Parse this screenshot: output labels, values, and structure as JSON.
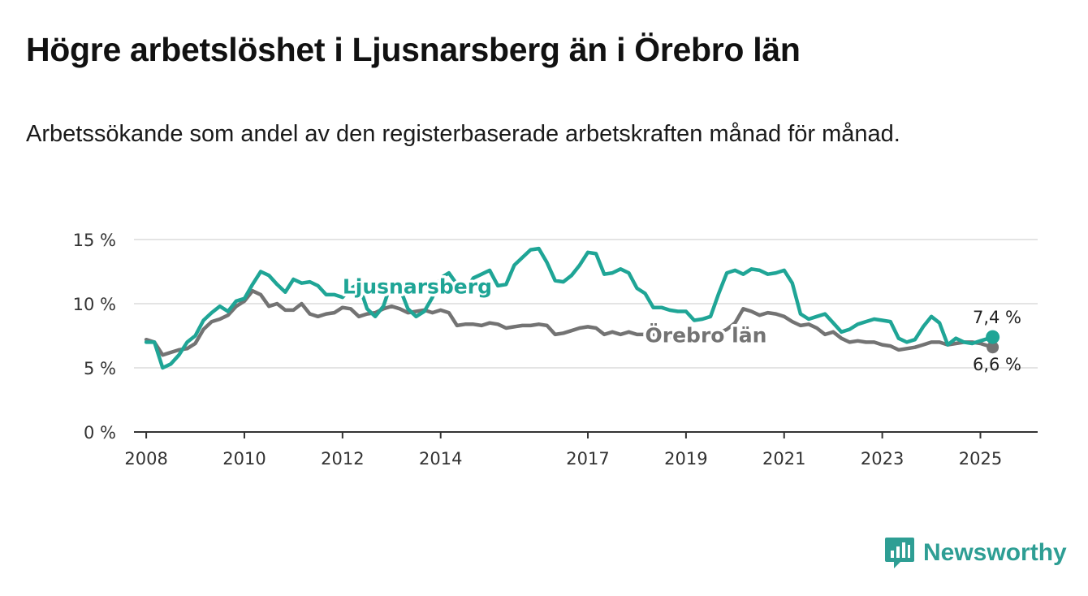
{
  "title": "Högre arbetslöshet i Ljusnarsberg än i Örebro län",
  "subtitle": "Arbetssökande som andel av den registerbaserade arbetskraften månad för månad.",
  "brand": {
    "name": "Newsworthy",
    "icon": "bar-chart-icon",
    "color": "#2e9e94"
  },
  "chart_data": {
    "type": "line",
    "title": "Högre arbetslöshet i Ljusnarsberg än i Örebro län",
    "subtitle": "Arbetssökande som andel av den registerbaserade arbetskraften månad för månad.",
    "xlabel": "",
    "ylabel": "",
    "ylim": [
      0,
      15
    ],
    "xlim": [
      "2007-10",
      "2026-03"
    ],
    "grid": true,
    "y_ticks": [
      {
        "value": 0,
        "label": "0 %"
      },
      {
        "value": 5,
        "label": "5 %"
      },
      {
        "value": 10,
        "label": "10 %"
      },
      {
        "value": 15,
        "label": "15 %"
      }
    ],
    "x_ticks": [
      {
        "value": "2008-01",
        "label": "2008"
      },
      {
        "value": "2010-01",
        "label": "2010"
      },
      {
        "value": "2012-01",
        "label": "2012"
      },
      {
        "value": "2014-01",
        "label": "2014"
      },
      {
        "value": "2017-01",
        "label": "2017"
      },
      {
        "value": "2019-01",
        "label": "2019"
      },
      {
        "value": "2021-01",
        "label": "2021"
      },
      {
        "value": "2023-01",
        "label": "2023"
      },
      {
        "value": "2025-01",
        "label": "2025"
      }
    ],
    "series": [
      {
        "name": "Ljusnarsberg",
        "color": "#1fa596",
        "end_label": "7,4 %",
        "points": [
          [
            "2008-01",
            7.0
          ],
          [
            "2008-03",
            7.0
          ],
          [
            "2008-05",
            5.0
          ],
          [
            "2008-07",
            5.3
          ],
          [
            "2008-09",
            6.0
          ],
          [
            "2008-11",
            7.0
          ],
          [
            "2009-01",
            7.5
          ],
          [
            "2009-03",
            8.7
          ],
          [
            "2009-05",
            9.3
          ],
          [
            "2009-07",
            9.8
          ],
          [
            "2009-09",
            9.4
          ],
          [
            "2009-11",
            10.2
          ],
          [
            "2010-01",
            10.4
          ],
          [
            "2010-03",
            11.5
          ],
          [
            "2010-05",
            12.5
          ],
          [
            "2010-07",
            12.2
          ],
          [
            "2010-09",
            11.5
          ],
          [
            "2010-11",
            10.9
          ],
          [
            "2011-01",
            11.9
          ],
          [
            "2011-03",
            11.6
          ],
          [
            "2011-05",
            11.7
          ],
          [
            "2011-07",
            11.4
          ],
          [
            "2011-09",
            10.7
          ],
          [
            "2011-11",
            10.7
          ],
          [
            "2012-01",
            10.5
          ],
          [
            "2012-03",
            11.2
          ],
          [
            "2012-05",
            11.5
          ],
          [
            "2012-07",
            9.6
          ],
          [
            "2012-09",
            9.0
          ],
          [
            "2012-11",
            9.8
          ],
          [
            "2013-01",
            11.7
          ],
          [
            "2013-03",
            11.2
          ],
          [
            "2013-05",
            9.6
          ],
          [
            "2013-07",
            9.0
          ],
          [
            "2013-09",
            9.4
          ],
          [
            "2013-11",
            10.5
          ],
          [
            "2014-01",
            12.0
          ],
          [
            "2014-03",
            12.4
          ],
          [
            "2014-05",
            11.5
          ],
          [
            "2014-07",
            11.0
          ],
          [
            "2014-09",
            12.0
          ],
          [
            "2014-11",
            12.3
          ],
          [
            "2015-01",
            12.6
          ],
          [
            "2015-03",
            11.4
          ],
          [
            "2015-05",
            11.5
          ],
          [
            "2015-07",
            13.0
          ],
          [
            "2015-09",
            13.6
          ],
          [
            "2015-11",
            14.2
          ],
          [
            "2016-01",
            14.3
          ],
          [
            "2016-03",
            13.2
          ],
          [
            "2016-05",
            11.8
          ],
          [
            "2016-07",
            11.7
          ],
          [
            "2016-09",
            12.2
          ],
          [
            "2016-11",
            13.0
          ],
          [
            "2017-01",
            14.0
          ],
          [
            "2017-03",
            13.9
          ],
          [
            "2017-05",
            12.3
          ],
          [
            "2017-07",
            12.4
          ],
          [
            "2017-09",
            12.7
          ],
          [
            "2017-11",
            12.4
          ],
          [
            "2018-01",
            11.2
          ],
          [
            "2018-03",
            10.8
          ],
          [
            "2018-05",
            9.7
          ],
          [
            "2018-07",
            9.7
          ],
          [
            "2018-09",
            9.5
          ],
          [
            "2018-11",
            9.4
          ],
          [
            "2019-01",
            9.4
          ],
          [
            "2019-03",
            8.7
          ],
          [
            "2019-05",
            8.8
          ],
          [
            "2019-07",
            9.0
          ],
          [
            "2019-09",
            10.8
          ],
          [
            "2019-11",
            12.4
          ],
          [
            "2020-01",
            12.6
          ],
          [
            "2020-03",
            12.3
          ],
          [
            "2020-05",
            12.7
          ],
          [
            "2020-07",
            12.6
          ],
          [
            "2020-09",
            12.3
          ],
          [
            "2020-11",
            12.4
          ],
          [
            "2021-01",
            12.6
          ],
          [
            "2021-03",
            11.6
          ],
          [
            "2021-05",
            9.2
          ],
          [
            "2021-07",
            8.8
          ],
          [
            "2021-09",
            9.0
          ],
          [
            "2021-11",
            9.2
          ],
          [
            "2022-01",
            8.5
          ],
          [
            "2022-03",
            7.8
          ],
          [
            "2022-05",
            8.0
          ],
          [
            "2022-07",
            8.4
          ],
          [
            "2022-09",
            8.6
          ],
          [
            "2022-11",
            8.8
          ],
          [
            "2023-01",
            8.7
          ],
          [
            "2023-03",
            8.6
          ],
          [
            "2023-05",
            7.3
          ],
          [
            "2023-07",
            7.0
          ],
          [
            "2023-09",
            7.2
          ],
          [
            "2023-11",
            8.2
          ],
          [
            "2024-01",
            9.0
          ],
          [
            "2024-03",
            8.5
          ],
          [
            "2024-05",
            6.8
          ],
          [
            "2024-07",
            7.3
          ],
          [
            "2024-09",
            7.0
          ],
          [
            "2024-11",
            6.9
          ],
          [
            "2025-01",
            7.1
          ],
          [
            "2025-04",
            7.4
          ]
        ]
      },
      {
        "name": "Örebro län",
        "color": "#737373",
        "end_label": "6,6 %",
        "points": [
          [
            "2008-01",
            7.2
          ],
          [
            "2008-03",
            7.0
          ],
          [
            "2008-05",
            6.0
          ],
          [
            "2008-07",
            6.2
          ],
          [
            "2008-09",
            6.4
          ],
          [
            "2008-11",
            6.5
          ],
          [
            "2009-01",
            6.9
          ],
          [
            "2009-03",
            8.0
          ],
          [
            "2009-05",
            8.6
          ],
          [
            "2009-07",
            8.8
          ],
          [
            "2009-09",
            9.1
          ],
          [
            "2009-11",
            9.8
          ],
          [
            "2010-01",
            10.2
          ],
          [
            "2010-03",
            11.0
          ],
          [
            "2010-05",
            10.7
          ],
          [
            "2010-07",
            9.8
          ],
          [
            "2010-09",
            10.0
          ],
          [
            "2010-11",
            9.5
          ],
          [
            "2011-01",
            9.5
          ],
          [
            "2011-03",
            10.0
          ],
          [
            "2011-05",
            9.2
          ],
          [
            "2011-07",
            9.0
          ],
          [
            "2011-09",
            9.2
          ],
          [
            "2011-11",
            9.3
          ],
          [
            "2012-01",
            9.7
          ],
          [
            "2012-03",
            9.6
          ],
          [
            "2012-05",
            9.0
          ],
          [
            "2012-07",
            9.2
          ],
          [
            "2012-09",
            9.3
          ],
          [
            "2012-11",
            9.6
          ],
          [
            "2013-01",
            9.8
          ],
          [
            "2013-03",
            9.6
          ],
          [
            "2013-05",
            9.3
          ],
          [
            "2013-07",
            9.4
          ],
          [
            "2013-09",
            9.5
          ],
          [
            "2013-11",
            9.3
          ],
          [
            "2014-01",
            9.5
          ],
          [
            "2014-03",
            9.3
          ],
          [
            "2014-05",
            8.3
          ],
          [
            "2014-07",
            8.4
          ],
          [
            "2014-09",
            8.4
          ],
          [
            "2014-11",
            8.3
          ],
          [
            "2015-01",
            8.5
          ],
          [
            "2015-03",
            8.4
          ],
          [
            "2015-05",
            8.1
          ],
          [
            "2015-07",
            8.2
          ],
          [
            "2015-09",
            8.3
          ],
          [
            "2015-11",
            8.3
          ],
          [
            "2016-01",
            8.4
          ],
          [
            "2016-03",
            8.3
          ],
          [
            "2016-05",
            7.6
          ],
          [
            "2016-07",
            7.7
          ],
          [
            "2016-09",
            7.9
          ],
          [
            "2016-11",
            8.1
          ],
          [
            "2017-01",
            8.2
          ],
          [
            "2017-03",
            8.1
          ],
          [
            "2017-05",
            7.6
          ],
          [
            "2017-07",
            7.8
          ],
          [
            "2017-09",
            7.6
          ],
          [
            "2017-11",
            7.8
          ],
          [
            "2018-01",
            7.6
          ],
          [
            "2018-03",
            7.6
          ],
          [
            "2018-05",
            7.6
          ],
          [
            "2018-07",
            7.5
          ],
          [
            "2018-09",
            7.4
          ],
          [
            "2018-11",
            7.2
          ],
          [
            "2019-01",
            7.5
          ],
          [
            "2019-03",
            7.4
          ],
          [
            "2019-05",
            7.3
          ],
          [
            "2019-07",
            7.5
          ],
          [
            "2019-09",
            7.7
          ],
          [
            "2019-11",
            8.0
          ],
          [
            "2020-01",
            8.5
          ],
          [
            "2020-03",
            9.6
          ],
          [
            "2020-05",
            9.4
          ],
          [
            "2020-07",
            9.1
          ],
          [
            "2020-09",
            9.3
          ],
          [
            "2020-11",
            9.2
          ],
          [
            "2021-01",
            9.0
          ],
          [
            "2021-03",
            8.6
          ],
          [
            "2021-05",
            8.3
          ],
          [
            "2021-07",
            8.4
          ],
          [
            "2021-09",
            8.1
          ],
          [
            "2021-11",
            7.6
          ],
          [
            "2022-01",
            7.8
          ],
          [
            "2022-03",
            7.3
          ],
          [
            "2022-05",
            7.0
          ],
          [
            "2022-07",
            7.1
          ],
          [
            "2022-09",
            7.0
          ],
          [
            "2022-11",
            7.0
          ],
          [
            "2023-01",
            6.8
          ],
          [
            "2023-03",
            6.7
          ],
          [
            "2023-05",
            6.4
          ],
          [
            "2023-07",
            6.5
          ],
          [
            "2023-09",
            6.6
          ],
          [
            "2023-11",
            6.8
          ],
          [
            "2024-01",
            7.0
          ],
          [
            "2024-03",
            7.0
          ],
          [
            "2024-05",
            6.8
          ],
          [
            "2024-07",
            6.9
          ],
          [
            "2024-09",
            7.0
          ],
          [
            "2024-11",
            7.0
          ],
          [
            "2025-01",
            6.9
          ],
          [
            "2025-04",
            6.6
          ]
        ]
      }
    ]
  }
}
